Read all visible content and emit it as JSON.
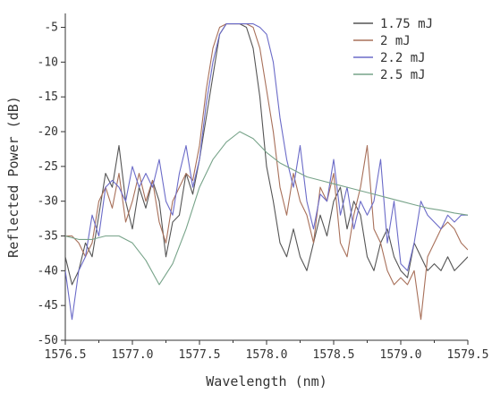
{
  "chart_data": {
    "type": "line",
    "xlabel": "Wavelength (nm)",
    "ylabel": "Reflected Power (dB)",
    "xlim": [
      1576.5,
      1579.5
    ],
    "ylim": [
      -50,
      -3
    ],
    "xticks": [
      1576.5,
      1577.0,
      1577.5,
      1578.0,
      1578.5,
      1579.0,
      1579.5
    ],
    "xtick_labels": [
      "1576.5",
      "1577.0",
      "1577.5",
      "1578.0",
      "1578.5",
      "1579.0",
      "1579.5"
    ],
    "yticks": [
      -5,
      -10,
      -15,
      -20,
      -25,
      -30,
      -35,
      -40,
      -45,
      -50
    ],
    "ytick_labels": [
      "-5",
      "-10",
      "-15",
      "-20",
      "-25",
      "-30",
      "-35",
      "-40",
      "-45",
      "-50"
    ],
    "grid": false,
    "legend_position": "top-right",
    "series": [
      {
        "name": "1.75 mJ",
        "color": "#555555",
        "x": [
          1576.5,
          1576.55,
          1576.6,
          1576.65,
          1576.7,
          1576.75,
          1576.8,
          1576.85,
          1576.9,
          1576.95,
          1577.0,
          1577.05,
          1577.1,
          1577.15,
          1577.2,
          1577.25,
          1577.3,
          1577.35,
          1577.4,
          1577.45,
          1577.5,
          1577.55,
          1577.6,
          1577.65,
          1577.7,
          1577.75,
          1577.8,
          1577.85,
          1577.9,
          1577.95,
          1578.0,
          1578.05,
          1578.1,
          1578.15,
          1578.2,
          1578.25,
          1578.3,
          1578.35,
          1578.4,
          1578.45,
          1578.5,
          1578.55,
          1578.6,
          1578.65,
          1578.7,
          1578.75,
          1578.8,
          1578.85,
          1578.9,
          1578.95,
          1579.0,
          1579.05,
          1579.1,
          1579.15,
          1579.2,
          1579.25,
          1579.3,
          1579.35,
          1579.4,
          1579.45,
          1579.5
        ],
        "y": [
          -38,
          -42,
          -40,
          -36,
          -38,
          -32,
          -26,
          -28,
          -22,
          -30,
          -34,
          -28,
          -31,
          -27,
          -30,
          -38,
          -33,
          -32,
          -26,
          -29,
          -24,
          -18,
          -12,
          -6,
          -4.5,
          -4.5,
          -4.5,
          -5,
          -8,
          -15,
          -25,
          -30,
          -36,
          -38,
          -34,
          -38,
          -40,
          -36,
          -32,
          -35,
          -30,
          -28,
          -34,
          -30,
          -32,
          -38,
          -40,
          -36,
          -34,
          -38,
          -40,
          -41,
          -36,
          -38,
          -40,
          -39,
          -40,
          -38,
          -40,
          -39,
          -38
        ]
      },
      {
        "name": "2 mJ",
        "color": "#a8705a",
        "x": [
          1576.5,
          1576.55,
          1576.6,
          1576.65,
          1576.7,
          1576.75,
          1576.8,
          1576.85,
          1576.9,
          1576.95,
          1577.0,
          1577.05,
          1577.1,
          1577.15,
          1577.2,
          1577.25,
          1577.3,
          1577.35,
          1577.4,
          1577.45,
          1577.5,
          1577.55,
          1577.6,
          1577.65,
          1577.7,
          1577.75,
          1577.8,
          1577.85,
          1577.9,
          1577.95,
          1578.0,
          1578.05,
          1578.1,
          1578.15,
          1578.2,
          1578.25,
          1578.3,
          1578.35,
          1578.4,
          1578.45,
          1578.5,
          1578.55,
          1578.6,
          1578.65,
          1578.7,
          1578.75,
          1578.8,
          1578.85,
          1578.9,
          1578.95,
          1579.0,
          1579.05,
          1579.1,
          1579.15,
          1579.2,
          1579.25,
          1579.3,
          1579.35,
          1579.4,
          1579.45,
          1579.5
        ],
        "y": [
          -35,
          -35,
          -36,
          -38,
          -36,
          -30,
          -28,
          -31,
          -26,
          -33,
          -30,
          -26,
          -30,
          -27,
          -33,
          -36,
          -30,
          -28,
          -26,
          -27,
          -22,
          -14,
          -8,
          -5,
          -4.5,
          -4.5,
          -4.5,
          -4.5,
          -5,
          -8,
          -14,
          -20,
          -28,
          -32,
          -26,
          -30,
          -32,
          -36,
          -28,
          -30,
          -26,
          -36,
          -38,
          -32,
          -28,
          -22,
          -34,
          -36,
          -40,
          -42,
          -41,
          -42,
          -40,
          -47,
          -38,
          -36,
          -34,
          -33,
          -34,
          -36,
          -37
        ]
      },
      {
        "name": "2.2 mJ",
        "color": "#6b6bc8",
        "x": [
          1576.5,
          1576.55,
          1576.6,
          1576.65,
          1576.7,
          1576.75,
          1576.8,
          1576.85,
          1576.9,
          1576.95,
          1577.0,
          1577.05,
          1577.1,
          1577.15,
          1577.2,
          1577.25,
          1577.3,
          1577.35,
          1577.4,
          1577.45,
          1577.5,
          1577.55,
          1577.6,
          1577.65,
          1577.7,
          1577.75,
          1577.8,
          1577.85,
          1577.9,
          1577.95,
          1578.0,
          1578.05,
          1578.1,
          1578.15,
          1578.2,
          1578.25,
          1578.3,
          1578.35,
          1578.4,
          1578.45,
          1578.5,
          1578.55,
          1578.6,
          1578.65,
          1578.7,
          1578.75,
          1578.8,
          1578.85,
          1578.9,
          1578.95,
          1579.0,
          1579.05,
          1579.1,
          1579.15,
          1579.2,
          1579.25,
          1579.3,
          1579.35,
          1579.4,
          1579.45,
          1579.5
        ],
        "y": [
          -40,
          -47,
          -40,
          -38,
          -32,
          -35,
          -28,
          -27,
          -28,
          -30,
          -25,
          -28,
          -26,
          -28,
          -24,
          -30,
          -32,
          -26,
          -22,
          -28,
          -24,
          -16,
          -10,
          -6,
          -4.5,
          -4.5,
          -4.5,
          -4.5,
          -4.5,
          -5,
          -6,
          -10,
          -18,
          -24,
          -28,
          -22,
          -30,
          -34,
          -29,
          -30,
          -24,
          -32,
          -28,
          -34,
          -30,
          -32,
          -30,
          -24,
          -36,
          -30,
          -39,
          -40,
          -36,
          -30,
          -32,
          -33,
          -34,
          -32,
          -33,
          -32,
          -32
        ]
      },
      {
        "name": "2.5 mJ",
        "color": "#77a389",
        "x": [
          1576.5,
          1576.6,
          1576.7,
          1576.8,
          1576.9,
          1577.0,
          1577.1,
          1577.2,
          1577.3,
          1577.4,
          1577.5,
          1577.6,
          1577.7,
          1577.8,
          1577.9,
          1578.0,
          1578.1,
          1578.2,
          1578.3,
          1578.4,
          1578.5,
          1578.6,
          1578.7,
          1578.8,
          1578.9,
          1579.0,
          1579.1,
          1579.2,
          1579.3,
          1579.4,
          1579.5
        ],
        "y": [
          -35,
          -35.5,
          -35.5,
          -35,
          -35,
          -36,
          -38.5,
          -42,
          -39,
          -34,
          -28,
          -24,
          -21.5,
          -20,
          -21,
          -23,
          -24.5,
          -25.5,
          -26.5,
          -27,
          -27.5,
          -28,
          -28.5,
          -29,
          -29.5,
          -30,
          -30.5,
          -31,
          -31.3,
          -31.7,
          -32
        ]
      }
    ]
  }
}
